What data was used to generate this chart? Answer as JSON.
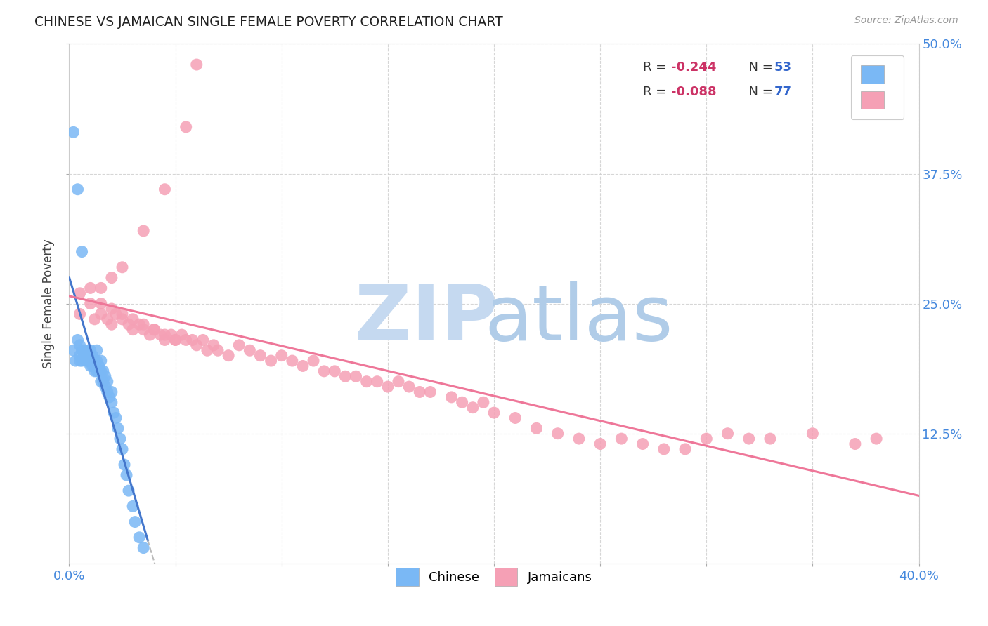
{
  "title": "CHINESE VS JAMAICAN SINGLE FEMALE POVERTY CORRELATION CHART",
  "source": "Source: ZipAtlas.com",
  "ylabel": "Single Female Poverty",
  "xlim": [
    0.0,
    0.4
  ],
  "ylim": [
    0.0,
    0.5
  ],
  "xtick_vals": [
    0.0,
    0.05,
    0.1,
    0.15,
    0.2,
    0.25,
    0.3,
    0.35,
    0.4
  ],
  "xtick_edge_labels": {
    "0": "0.0%",
    "8": "40.0%"
  },
  "ytick_vals": [
    0.125,
    0.25,
    0.375,
    0.5
  ],
  "ytick_labels": [
    "12.5%",
    "25.0%",
    "37.5%",
    "50.0%"
  ],
  "background_color": "#ffffff",
  "grid_color": "#cccccc",
  "chinese_color": "#7ab8f5",
  "jamaican_color": "#f5a0b5",
  "chinese_line_color": "#4477cc",
  "jamaican_line_color": "#ee7799",
  "dashed_line_color": "#bbbbbb",
  "chinese_R": -0.244,
  "chinese_N": 53,
  "jamaican_R": -0.088,
  "jamaican_N": 77,
  "watermark_zip_color": "#c5d9f0",
  "watermark_atlas_color": "#b0cce8",
  "legend_R_color": "#cc3366",
  "legend_N_color": "#3366cc",
  "tick_label_color": "#4488dd",
  "chinese_x": [
    0.002,
    0.003,
    0.004,
    0.005,
    0.005,
    0.005,
    0.006,
    0.006,
    0.007,
    0.007,
    0.008,
    0.008,
    0.009,
    0.009,
    0.01,
    0.01,
    0.01,
    0.011,
    0.011,
    0.012,
    0.012,
    0.013,
    0.013,
    0.013,
    0.014,
    0.014,
    0.015,
    0.015,
    0.015,
    0.016,
    0.016,
    0.017,
    0.017,
    0.018,
    0.018,
    0.019,
    0.02,
    0.02,
    0.021,
    0.022,
    0.023,
    0.024,
    0.025,
    0.026,
    0.027,
    0.028,
    0.03,
    0.031,
    0.033,
    0.035,
    0.002,
    0.004,
    0.006
  ],
  "chinese_y": [
    0.205,
    0.195,
    0.215,
    0.195,
    0.21,
    0.2,
    0.205,
    0.195,
    0.2,
    0.205,
    0.195,
    0.2,
    0.195,
    0.205,
    0.19,
    0.195,
    0.205,
    0.19,
    0.2,
    0.185,
    0.195,
    0.185,
    0.195,
    0.205,
    0.185,
    0.19,
    0.175,
    0.185,
    0.195,
    0.175,
    0.185,
    0.17,
    0.18,
    0.165,
    0.175,
    0.16,
    0.155,
    0.165,
    0.145,
    0.14,
    0.13,
    0.12,
    0.11,
    0.095,
    0.085,
    0.07,
    0.055,
    0.04,
    0.025,
    0.015,
    0.415,
    0.36,
    0.3
  ],
  "jamaican_x": [
    0.005,
    0.01,
    0.012,
    0.015,
    0.018,
    0.02,
    0.022,
    0.025,
    0.028,
    0.03,
    0.033,
    0.035,
    0.038,
    0.04,
    0.043,
    0.045,
    0.048,
    0.05,
    0.053,
    0.055,
    0.058,
    0.06,
    0.063,
    0.065,
    0.068,
    0.07,
    0.075,
    0.08,
    0.085,
    0.09,
    0.095,
    0.1,
    0.105,
    0.11,
    0.115,
    0.12,
    0.125,
    0.13,
    0.135,
    0.14,
    0.145,
    0.15,
    0.155,
    0.16,
    0.165,
    0.17,
    0.18,
    0.185,
    0.19,
    0.195,
    0.2,
    0.21,
    0.22,
    0.23,
    0.24,
    0.25,
    0.26,
    0.27,
    0.28,
    0.29,
    0.3,
    0.31,
    0.32,
    0.33,
    0.35,
    0.37,
    0.38,
    0.005,
    0.01,
    0.015,
    0.02,
    0.025,
    0.03,
    0.035,
    0.04,
    0.045,
    0.05
  ],
  "jamaican_y": [
    0.24,
    0.25,
    0.235,
    0.24,
    0.235,
    0.23,
    0.24,
    0.235,
    0.23,
    0.225,
    0.23,
    0.225,
    0.22,
    0.225,
    0.22,
    0.215,
    0.22,
    0.215,
    0.22,
    0.215,
    0.215,
    0.21,
    0.215,
    0.205,
    0.21,
    0.205,
    0.2,
    0.21,
    0.205,
    0.2,
    0.195,
    0.2,
    0.195,
    0.19,
    0.195,
    0.185,
    0.185,
    0.18,
    0.18,
    0.175,
    0.175,
    0.17,
    0.175,
    0.17,
    0.165,
    0.165,
    0.16,
    0.155,
    0.15,
    0.155,
    0.145,
    0.14,
    0.13,
    0.125,
    0.12,
    0.115,
    0.12,
    0.115,
    0.11,
    0.11,
    0.12,
    0.125,
    0.12,
    0.12,
    0.125,
    0.115,
    0.12,
    0.26,
    0.265,
    0.25,
    0.245,
    0.24,
    0.235,
    0.23,
    0.225,
    0.22,
    0.215
  ],
  "jamaican_extra_x": [
    0.06,
    0.055,
    0.045,
    0.035,
    0.025,
    0.02,
    0.015
  ],
  "jamaican_extra_y": [
    0.48,
    0.42,
    0.36,
    0.32,
    0.285,
    0.275,
    0.265
  ]
}
